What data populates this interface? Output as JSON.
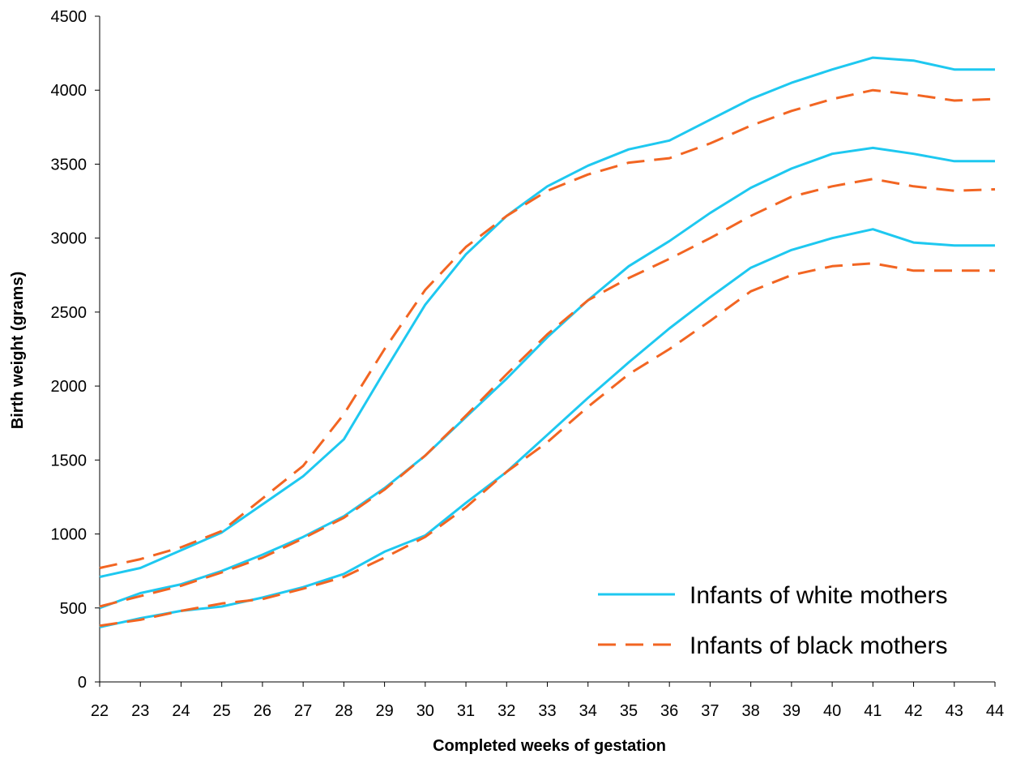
{
  "chart_data": {
    "type": "line",
    "title": "",
    "xlabel": "Completed weeks of gestation",
    "ylabel": "Birth weight (grams)",
    "ylim": [
      0,
      4500
    ],
    "yticks": [
      0,
      500,
      1000,
      1500,
      2000,
      2500,
      3000,
      3500,
      4000,
      4500
    ],
    "grid": false,
    "legend_position": "bottom-right",
    "categories": [
      "22",
      "23",
      "24",
      "25",
      "26",
      "27",
      "28",
      "29",
      "30",
      "31",
      "32",
      "33",
      "34",
      "35",
      "36",
      "37",
      "38",
      "39",
      "40",
      "41",
      "42",
      "43",
      "44"
    ],
    "legend": [
      {
        "label": "Infants of white mothers",
        "color": "#1EC8F0",
        "style": "solid"
      },
      {
        "label": "Infants of black mothers",
        "color": "#F26522",
        "style": "dashed"
      }
    ],
    "series": [
      {
        "group": "Infants of white mothers",
        "color": "#1EC8F0",
        "style": "solid",
        "values": [
          710,
          770,
          890,
          1010,
          1200,
          1390,
          1640,
          2100,
          2550,
          2890,
          3150,
          3350,
          3490,
          3600,
          3660,
          3800,
          3940,
          4050,
          4140,
          4220,
          4200,
          4140,
          4140
        ]
      },
      {
        "group": "Infants of white mothers",
        "color": "#1EC8F0",
        "style": "solid",
        "values": [
          500,
          600,
          660,
          750,
          860,
          980,
          1120,
          1310,
          1530,
          1790,
          2050,
          2330,
          2580,
          2810,
          2980,
          3170,
          3340,
          3470,
          3570,
          3610,
          3570,
          3520,
          3520
        ]
      },
      {
        "group": "Infants of white mothers",
        "color": "#1EC8F0",
        "style": "solid",
        "values": [
          370,
          430,
          480,
          510,
          570,
          640,
          730,
          880,
          990,
          1210,
          1420,
          1670,
          1920,
          2160,
          2390,
          2600,
          2800,
          2920,
          3000,
          3060,
          2970,
          2950,
          2950
        ]
      },
      {
        "group": "Infants of black mothers",
        "color": "#F26522",
        "style": "dashed",
        "values": [
          770,
          830,
          910,
          1020,
          1240,
          1460,
          1810,
          2250,
          2650,
          2940,
          3150,
          3320,
          3430,
          3510,
          3540,
          3640,
          3760,
          3860,
          3940,
          4000,
          3970,
          3930,
          3940
        ]
      },
      {
        "group": "Infants of black mothers",
        "color": "#F26522",
        "style": "dashed",
        "values": [
          510,
          580,
          650,
          740,
          840,
          970,
          1110,
          1300,
          1530,
          1800,
          2080,
          2350,
          2580,
          2730,
          2860,
          3000,
          3150,
          3280,
          3350,
          3400,
          3350,
          3320,
          3330
        ]
      },
      {
        "group": "Infants of black mothers",
        "color": "#F26522",
        "style": "dashed",
        "values": [
          380,
          420,
          480,
          530,
          560,
          630,
          710,
          840,
          980,
          1180,
          1420,
          1620,
          1860,
          2080,
          2250,
          2440,
          2640,
          2750,
          2810,
          2830,
          2780,
          2780,
          2780
        ]
      }
    ]
  }
}
